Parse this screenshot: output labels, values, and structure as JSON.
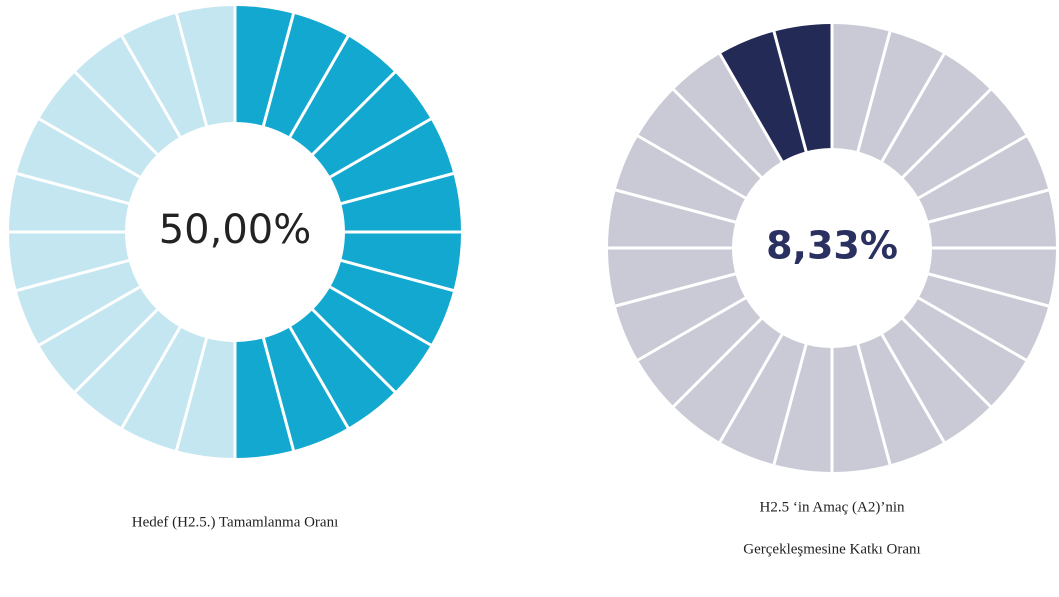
{
  "chart_data": [
    {
      "type": "gauge",
      "values": [
        50
      ],
      "value_labels": [
        "50,00%"
      ],
      "vlim": [
        0,
        100
      ],
      "segments": 24,
      "direction": "clockwise",
      "color": "#12a8cf",
      "track_color": "#c3e6f1",
      "label_color": "#222222",
      "title": [
        "Hedef (H2.5.) Tamamlanma Oranı"
      ]
    },
    {
      "type": "gauge",
      "values": [
        8.33
      ],
      "value_labels": [
        "8,33%"
      ],
      "vlim": [
        0,
        100
      ],
      "segments": 24,
      "direction": "counterclockwise",
      "color": "#232a55",
      "track_color": "#c9cad5",
      "label_color": "#2a3160",
      "title": [
        "H2.5 ‘in Amaç (A2)’nin",
        "Gerçekleşmesine Katkı Oranı"
      ]
    }
  ]
}
